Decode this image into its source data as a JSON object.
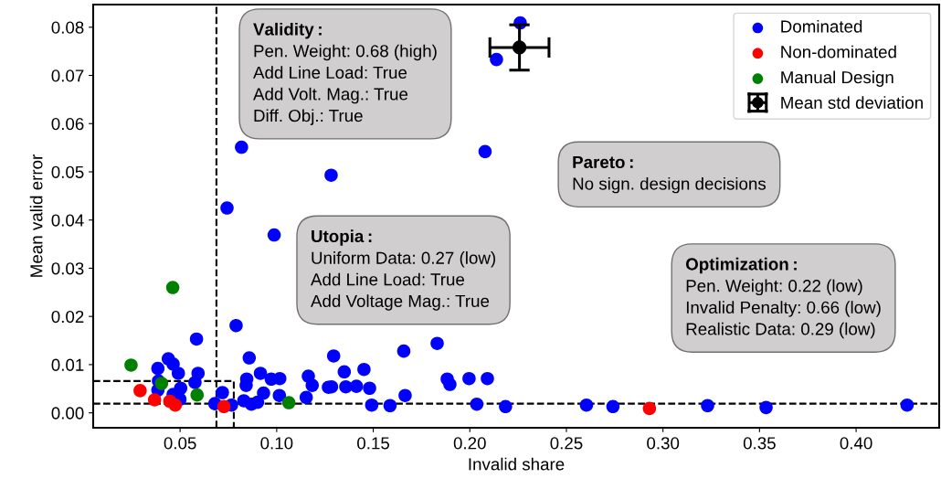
{
  "chart_data": {
    "type": "scatter",
    "xlabel": "Invalid share",
    "ylabel": "Mean valid error",
    "xlim": [
      0.005,
      0.443
    ],
    "ylim": [
      -0.0031,
      0.0847
    ],
    "xticks": [
      {
        "value": 0.05,
        "label": "0.05"
      },
      {
        "value": 0.1,
        "label": "0.10"
      },
      {
        "value": 0.15,
        "label": "0.15"
      },
      {
        "value": 0.2,
        "label": "0.20"
      },
      {
        "value": 0.25,
        "label": "0.25"
      },
      {
        "value": 0.3,
        "label": "0.30"
      },
      {
        "value": 0.35,
        "label": "0.35"
      },
      {
        "value": 0.4,
        "label": "0.40"
      }
    ],
    "yticks": [
      {
        "value": 0,
        "label": "0.00"
      },
      {
        "value": 0.01,
        "label": "0.01"
      },
      {
        "value": 0.02,
        "label": "0.02"
      },
      {
        "value": 0.03,
        "label": "0.03"
      },
      {
        "value": 0.04,
        "label": "0.04"
      },
      {
        "value": 0.05,
        "label": "0.05"
      },
      {
        "value": 0.06,
        "label": "0.06"
      },
      {
        "value": 0.07,
        "label": "0.07"
      },
      {
        "value": 0.08,
        "label": "0.08"
      }
    ],
    "grid": false,
    "legend": "top right",
    "marker": "circle",
    "series": [
      {
        "name": "Dominated",
        "color": "#0000ff",
        "x": [
          0.079,
          0.0585,
          0.0858,
          0.0439,
          0.0385,
          0.0464,
          0.0491,
          0.0593,
          0.0577,
          0.0388,
          0.0385,
          0.0503,
          0.0464,
          0.0499,
          0.0916,
          0.0845,
          0.0842,
          0.0972,
          0.1016,
          0.0932,
          0.1014,
          0.083,
          0.0869,
          0.0901,
          0.0719,
          0.068,
          0.0766,
          0.1164,
          0.1184,
          0.1153,
          0.1268,
          0.1295,
          0.135,
          0.1284,
          0.1358,
          0.1413,
          0.1452,
          0.1481,
          0.1492,
          0.1587,
          0.1658,
          0.1665,
          0.1831,
          0.1883,
          0.1897,
          0.1996,
          0.2091,
          0.2036,
          0.2185,
          0.2604,
          0.2741,
          0.3231,
          0.3534,
          0.4264,
          0.2261,
          0.2138,
          0.0818,
          0.2079,
          0.1282,
          0.0743,
          0.0987
        ],
        "values": [
          0.0181,
          0.0153,
          0.0114,
          0.0112,
          0.0092,
          0.0101,
          0.0082,
          0.0082,
          0.0063,
          0.0066,
          0.0047,
          0.0051,
          0.0038,
          0.0028,
          0.0082,
          0.007,
          0.0057,
          0.007,
          0.0071,
          0.0041,
          0.0036,
          0.0025,
          0.0018,
          0.0022,
          0.0042,
          0.0019,
          0.0016,
          0.0076,
          0.0057,
          0.0032,
          0.0053,
          0.0118,
          0.0085,
          0.0054,
          0.0054,
          0.0055,
          0.009,
          0.0051,
          0.0016,
          0.0015,
          0.0128,
          0.0036,
          0.0144,
          0.007,
          0.0059,
          0.0071,
          0.0071,
          0.0018,
          0.0013,
          0.0016,
          0.0013,
          0.0015,
          0.0011,
          0.0016,
          0.0809,
          0.0733,
          0.0551,
          0.0542,
          0.0493,
          0.0425,
          0.0369
        ]
      },
      {
        "name": "Non-dominated",
        "color": "#ff0000",
        "x": [
          0.0293,
          0.0368,
          0.0447,
          0.0475,
          0.0727,
          0.293
        ],
        "values": [
          0.0046,
          0.0027,
          0.0024,
          0.0016,
          0.0013,
          0.0009
        ]
      },
      {
        "name": "Manual Design",
        "color": "#008000",
        "x": [
          0.0462,
          0.0246,
          0.0404,
          0.0588,
          0.1063
        ],
        "values": [
          0.026,
          0.0099,
          0.0061,
          0.0037,
          0.0021
        ]
      },
      {
        "name": "Mean std deviation",
        "color": "#000000",
        "x": [
          0.2257
        ],
        "values": [
          0.0758
        ],
        "errors": [
          0.0047
        ],
        "xerrors": [
          0.0153
        ]
      },
      {
        "type": "line",
        "color": "#000000",
        "line_style": "dashed",
        "marker": "none",
        "x": [
          0.005,
          0.0778,
          0.0778
        ],
        "values": [
          0.0066,
          0.0066,
          -0.0031
        ]
      }
    ],
    "ref_lines": [
      {
        "axis": "x",
        "value": 0.0688,
        "color": "#000000",
        "line_style": "dashed"
      },
      {
        "axis": "y",
        "value": 0.0019,
        "color": "#000000",
        "line_style": "dashed"
      }
    ],
    "annotations": [
      "Validity:\nPen. Weight: 0.68 (high)\nAdd Line Load: True\nAdd Volt. Mag.: True\nDiff. Obj.: True",
      "Pareto:\nNo sign. design decisions",
      "Utopia:\nUniform Data: 0.27 (low)\nAdd Line Load: True\nAdd Voltage Mag.: True",
      "Optimization:\nPen. Weight: 0.22 (low)\nInvalid Penalty: 0.66 (low)\nRealistic Data: 0.29 (low)"
    ]
  }
}
